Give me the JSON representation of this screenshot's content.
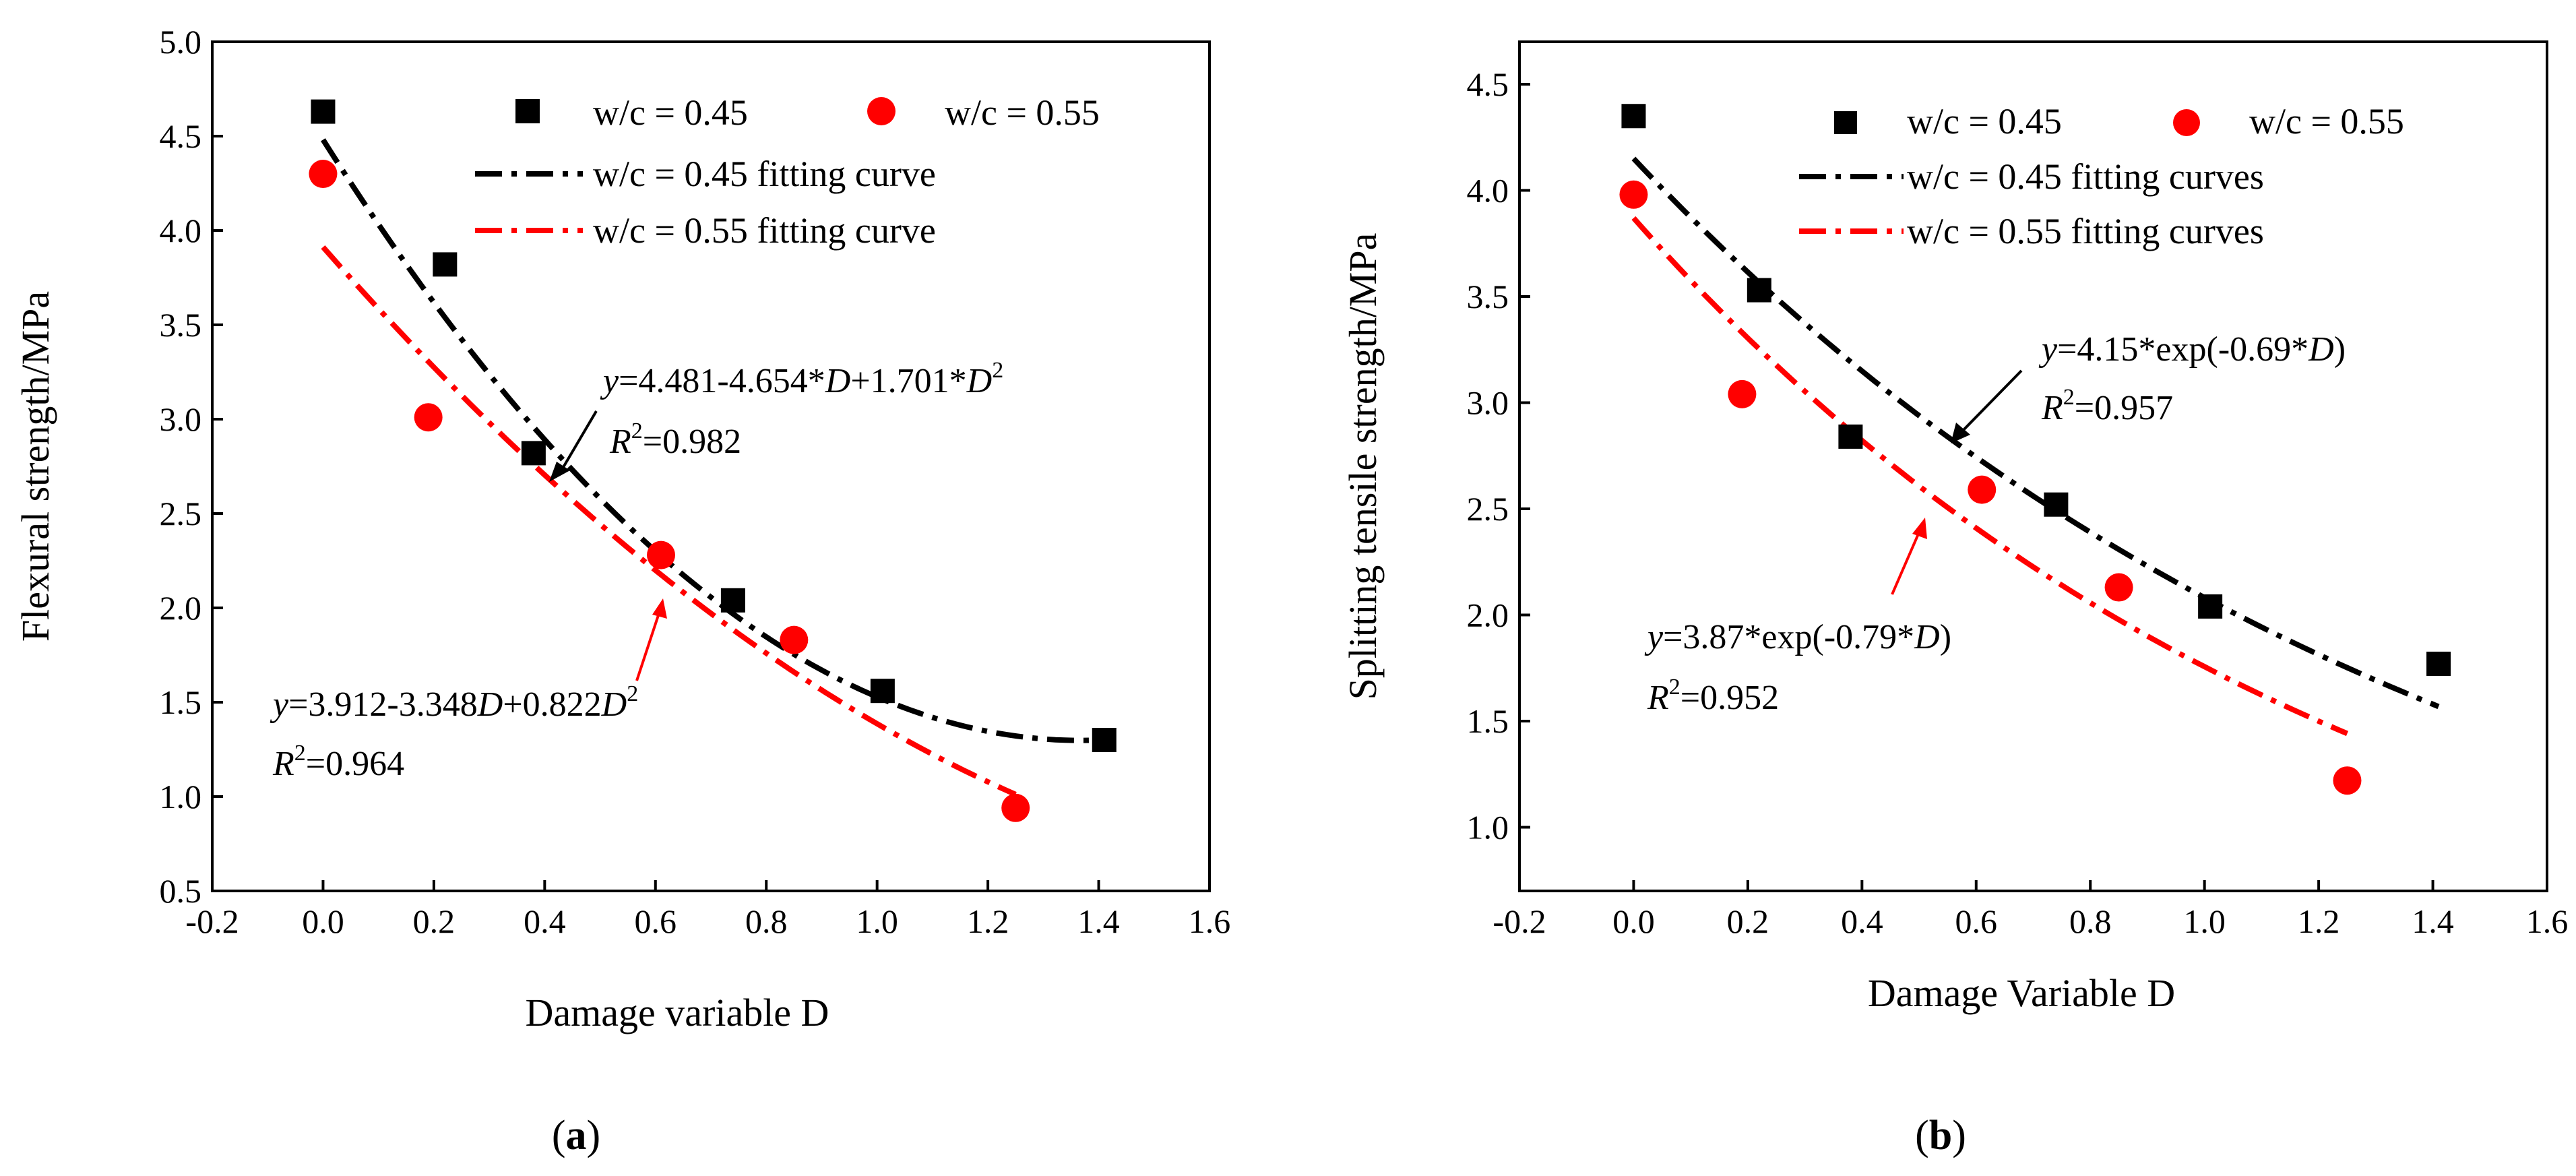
{
  "chart_data": [
    {
      "type": "scatter",
      "panel_label": "(a)",
      "xlabel": "Damage variable D",
      "ylabel": "Flexural strength/MPa",
      "xlim": [
        -0.2,
        1.6
      ],
      "ylim": [
        0.5,
        5.0
      ],
      "xticks": [
        "-0.2",
        "0.0",
        "0.2",
        "0.4",
        "0.6",
        "0.8",
        "1.0",
        "1.2",
        "1.4",
        "1.6"
      ],
      "yticks": [
        "0.5",
        "1.0",
        "1.5",
        "2.0",
        "2.5",
        "3.0",
        "3.5",
        "4.0",
        "4.5",
        "5.0"
      ],
      "series": [
        {
          "name": "w/c = 0.45",
          "marker": "square",
          "color": "#000000",
          "x": [
            0.0,
            0.22,
            0.38,
            0.74,
            1.01,
            1.41
          ],
          "y": [
            4.63,
            3.82,
            2.82,
            2.04,
            1.56,
            1.3
          ]
        },
        {
          "name": "w/c = 0.55",
          "marker": "circle",
          "color": "#ff0000",
          "x": [
            0.0,
            0.19,
            0.61,
            0.85,
            1.25
          ],
          "y": [
            4.3,
            3.01,
            2.28,
            1.83,
            0.94
          ]
        }
      ],
      "fits": [
        {
          "name": "w/c = 0.45 fitting curve",
          "color": "#000000",
          "model": "quadratic",
          "coef": [
            4.481,
            -4.654,
            1.701
          ],
          "domain": [
            0.0,
            1.41
          ]
        },
        {
          "name": "w/c = 0.55 fitting curve",
          "color": "#ff0000",
          "model": "quadratic",
          "coef": [
            3.912,
            -3.348,
            0.822
          ],
          "domain": [
            0.0,
            1.25
          ]
        }
      ],
      "annotations": [
        {
          "eq_prefix": "y",
          "eq_body": "=4.481-4.654*",
          "eq_var1": "D",
          "eq_mid": "+1.701*",
          "eq_var2": "D",
          "eq_sup": "2",
          "r2": "=0.982"
        },
        {
          "eq_prefix": "y",
          "eq_body": "=3.912-3.348",
          "eq_var1": "D",
          "eq_mid": "+0.822",
          "eq_var2": "D",
          "eq_sup": "2",
          "r2": "=0.964"
        }
      ]
    },
    {
      "type": "scatter",
      "panel_label": "(b)",
      "xlabel": "Damage Variable D",
      "ylabel": "Splitting tensile strength/MPa",
      "xlim": [
        -0.2,
        1.6
      ],
      "ylim": [
        0.7,
        4.7
      ],
      "xticks": [
        "-0.2",
        "0.0",
        "0.2",
        "0.4",
        "0.6",
        "0.8",
        "1.0",
        "1.2",
        "1.4",
        "1.6"
      ],
      "yticks": [
        "1.0",
        "1.5",
        "2.0",
        "2.5",
        "3.0",
        "3.5",
        "4.0",
        "4.5"
      ],
      "series": [
        {
          "name": "w/c = 0.45",
          "marker": "square",
          "color": "#000000",
          "x": [
            0.0,
            0.22,
            0.38,
            0.74,
            1.01,
            1.41
          ],
          "y": [
            4.35,
            3.53,
            2.84,
            2.52,
            2.04,
            1.77
          ]
        },
        {
          "name": "w/c = 0.55",
          "marker": "circle",
          "color": "#ff0000",
          "x": [
            0.0,
            0.19,
            0.61,
            0.85,
            1.25
          ],
          "y": [
            3.98,
            3.04,
            2.59,
            2.13,
            1.22
          ]
        }
      ],
      "fits": [
        {
          "name": "w/c = 0.45 fitting curves",
          "color": "#000000",
          "model": "exp",
          "a": 4.15,
          "b": -0.69,
          "domain": [
            0.0,
            1.41
          ]
        },
        {
          "name": "w/c = 0.55 fitting curves",
          "color": "#ff0000",
          "model": "exp",
          "a": 3.87,
          "b": -0.79,
          "domain": [
            0.0,
            1.25
          ]
        }
      ],
      "annotations": [
        {
          "eq_prefix": "y",
          "eq_body": "=4.15*exp(-0.69*",
          "eq_var1": "D",
          "eq_end": ")",
          "r2": "=0.957"
        },
        {
          "eq_prefix": "y",
          "eq_body": "=3.87*exp(-0.79*",
          "eq_var1": "D",
          "eq_end": ")",
          "r2": "=0.952"
        }
      ]
    }
  ]
}
